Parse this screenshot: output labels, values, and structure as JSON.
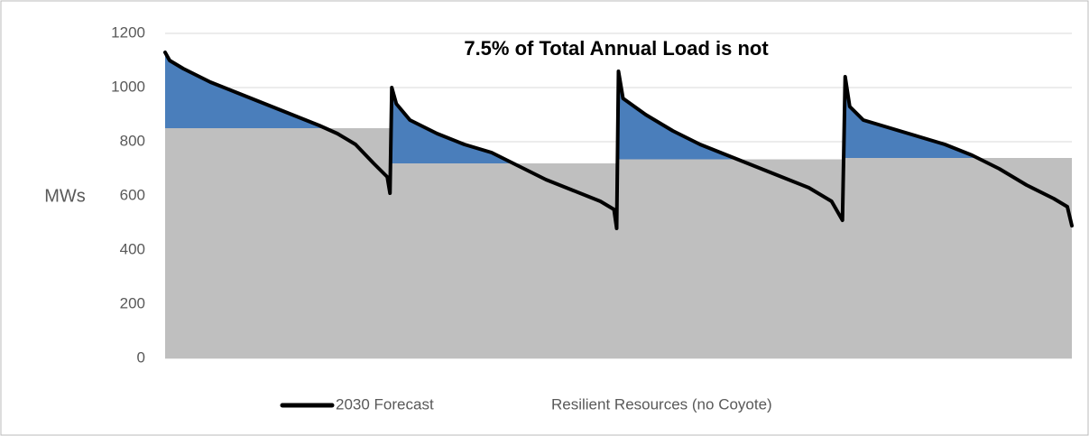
{
  "chart_data": {
    "type": "area-line",
    "title": "7.5% of Total Annual Load is not",
    "ylabel": "MWs",
    "xlim": [
      0,
      100
    ],
    "ylim": [
      0,
      1200
    ],
    "yticks": [
      0,
      200,
      400,
      600,
      800,
      1000,
      1200
    ],
    "grid": true,
    "excess_color": "#4a7ebb",
    "series": [
      {
        "name": "2030 Forecast",
        "color": "#000000",
        "kind": "line",
        "x": [
          0,
          0.5,
          2,
          5,
          8,
          11,
          14,
          17,
          19,
          21,
          23,
          24.5,
          24.8,
          25,
          25.5,
          27,
          30,
          33,
          36,
          39,
          42,
          45,
          48,
          49.5,
          49.8,
          50,
          50.5,
          53,
          56,
          59,
          62,
          65,
          68,
          71,
          73.5,
          74.7,
          75,
          75.5,
          77,
          80,
          83,
          86,
          89,
          92,
          95,
          98,
          99.5,
          100
        ],
        "values": [
          1130,
          1100,
          1070,
          1020,
          980,
          940,
          900,
          860,
          830,
          790,
          720,
          670,
          610,
          1000,
          940,
          880,
          830,
          790,
          760,
          710,
          660,
          620,
          580,
          550,
          480,
          1060,
          960,
          900,
          840,
          790,
          750,
          710,
          670,
          630,
          580,
          510,
          1040,
          930,
          880,
          850,
          820,
          790,
          750,
          700,
          640,
          590,
          560,
          490
        ]
      },
      {
        "name": "Resilient Resources (no Coyote)",
        "color": "#bfbfbf",
        "kind": "area",
        "x": [
          0,
          24.9,
          24.9,
          50,
          50,
          75,
          75,
          100
        ],
        "values": [
          850,
          850,
          720,
          720,
          735,
          735,
          740,
          740
        ]
      }
    ]
  }
}
